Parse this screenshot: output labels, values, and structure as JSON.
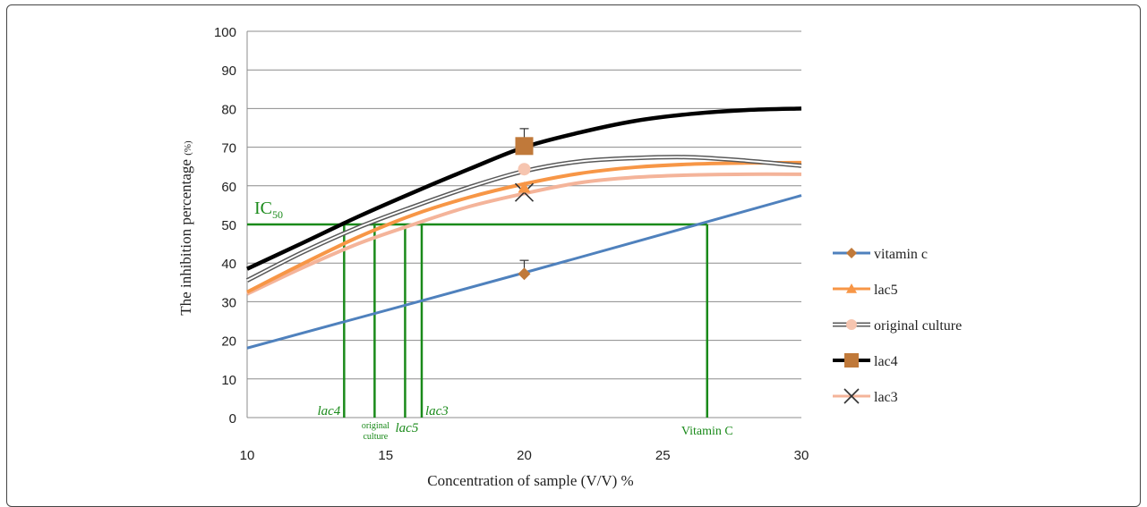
{
  "chart_data": {
    "type": "line",
    "xlabel": "Concentration of sample (V/V) %",
    "ylabel": "The inhibition percentage",
    "ylabel_unit": "(%)",
    "xlim": [
      10,
      30
    ],
    "ylim": [
      0,
      100
    ],
    "x_ticks": [
      "10",
      "15",
      "20",
      "25",
      "30"
    ],
    "y_ticks": [
      "0",
      "10",
      "20",
      "30",
      "40",
      "50",
      "60",
      "70",
      "80",
      "90",
      "100"
    ],
    "grid": "horizontal",
    "legend_position": "right",
    "colors": {
      "vitamin_c": "#4f81bd",
      "lac5": "#f79646",
      "original_culture": "#595959",
      "lac4": "#000000",
      "lac3": "#f4b49a",
      "ic50": "#1a8a1a",
      "marker": "#c0793a"
    },
    "series": [
      {
        "name": "vitamin c",
        "marker": "diamond",
        "x": [
          10,
          20,
          30
        ],
        "y": [
          18,
          37.5,
          57.5
        ],
        "point": {
          "x": 20,
          "y": 37.2,
          "err": 3.5
        }
      },
      {
        "name": "lac5",
        "marker": "triangle",
        "x": [
          10,
          12,
          14,
          16,
          18,
          20,
          22,
          24,
          26,
          28,
          30
        ],
        "y": [
          32.5,
          39.8,
          46.7,
          52.5,
          57.0,
          60.5,
          63.2,
          64.8,
          65.6,
          65.9,
          66
        ],
        "point": {
          "x": 20,
          "y": 59.5
        }
      },
      {
        "name": "original culture",
        "marker": "circle",
        "x": [
          10,
          12,
          14,
          16,
          18,
          20,
          22,
          24,
          26,
          28,
          30
        ],
        "y": [
          35.5,
          42.8,
          49.2,
          54.6,
          59.6,
          63.8,
          66.3,
          67.2,
          67.4,
          66.5,
          65.2
        ],
        "point": {
          "x": 20,
          "y": 64.3
        }
      },
      {
        "name": "lac4",
        "marker": "square",
        "x": [
          10,
          12,
          14,
          16,
          18,
          20,
          22,
          24,
          26,
          28,
          30
        ],
        "y": [
          38.5,
          45.2,
          52.0,
          58.3,
          64.3,
          70.0,
          73.8,
          76.8,
          78.6,
          79.6,
          80.0
        ],
        "point": {
          "x": 20,
          "y": 70.3,
          "err": 4.5
        }
      },
      {
        "name": "lac3",
        "marker": "x",
        "x": [
          10,
          12,
          14,
          16,
          18,
          20,
          22,
          24,
          26,
          28,
          30
        ],
        "y": [
          32.0,
          38.8,
          45.0,
          50.0,
          54.6,
          58.0,
          60.8,
          62.2,
          62.8,
          63.0,
          63.0
        ],
        "point": {
          "x": 20,
          "y": 58.3
        }
      }
    ],
    "ic50": {
      "label": "IC",
      "label_sub": "50",
      "y": 50,
      "lines": [
        {
          "label": "lac4",
          "x": 13.5,
          "italic": true
        },
        {
          "label": "original culture",
          "x": 14.6,
          "italic": false,
          "small": true
        },
        {
          "label": "lac5",
          "x": 15.7,
          "italic": true
        },
        {
          "label": "lac3",
          "x": 16.3,
          "italic": true
        },
        {
          "label": "Vitamin C",
          "x": 26.6,
          "italic": false
        }
      ]
    }
  }
}
